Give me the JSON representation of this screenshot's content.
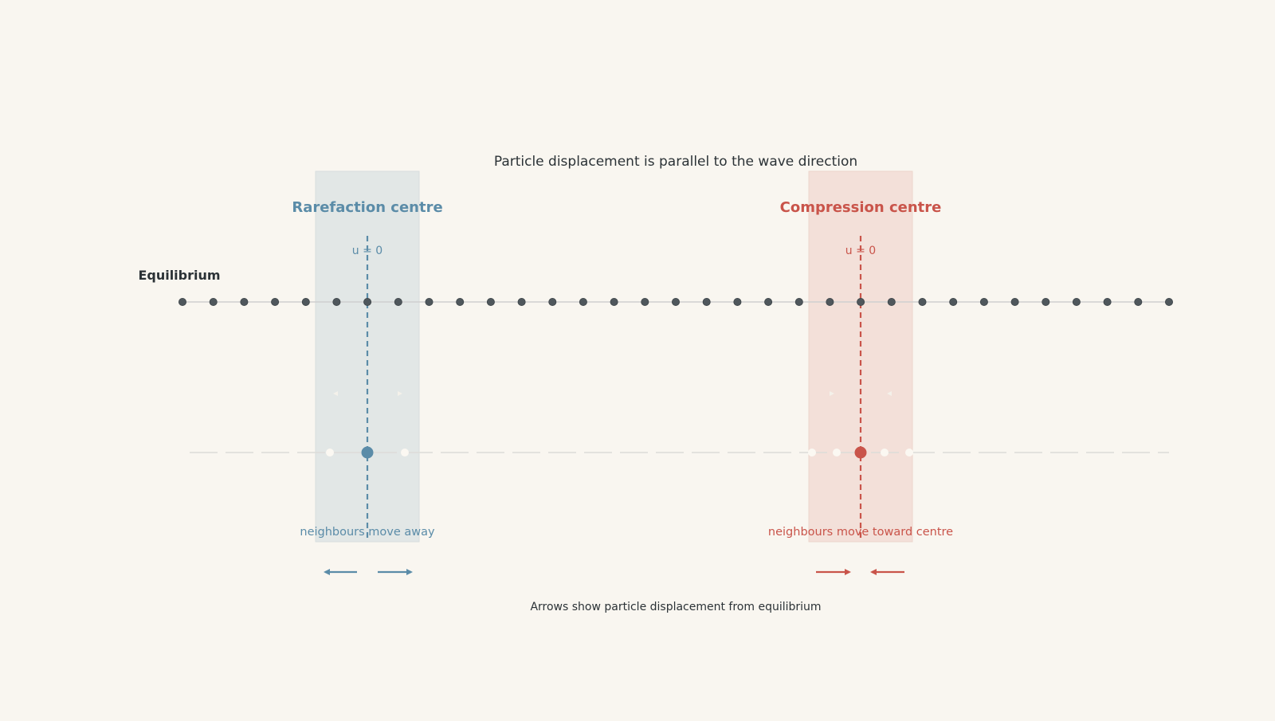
{
  "title": "Particle displacement is parallel to the wave direction",
  "footnote": "Arrows show particle displacement from equilibrium",
  "equilibrium_label": "Equilibrium",
  "equilibrium_particle_count": 33,
  "colors": {
    "background": "#f9f6f0",
    "particle": "#4f575c",
    "rarefaction": "#5b8ca8",
    "compression": "#c9544a",
    "rarefaction_band": "#e2e7e6",
    "compression_band": "#f3e0d9",
    "axis": "#cfcfcf",
    "text": "#2b3236"
  },
  "rarefaction": {
    "label": "Rarefaction centre",
    "u_label": "u = 0",
    "caption": "neighbours move away",
    "arrows": [
      "left",
      "right"
    ]
  },
  "compression": {
    "label": "Compression centre",
    "u_label": "u = 0",
    "caption": "neighbours move toward centre",
    "arrows": [
      "right",
      "left"
    ]
  }
}
